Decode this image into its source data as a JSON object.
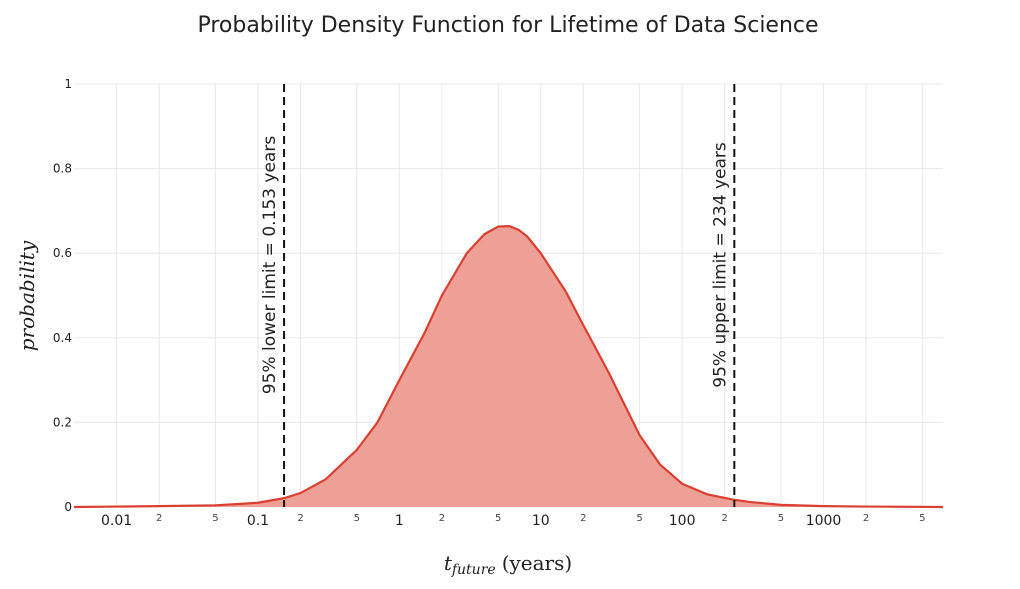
{
  "chart_data": {
    "type": "area",
    "title": "Probability Density Function for Lifetime of Data Science",
    "ylabel": "probability",
    "xlabel_main": "t",
    "xlabel_sub": "future",
    "xlabel_unit": "(years)",
    "x_scale": "log",
    "xlim": [
      0.005,
      7000
    ],
    "ylim": [
      0,
      1
    ],
    "y_ticks": [
      "0",
      "0.2",
      "0.4",
      "0.6",
      "0.8",
      "1"
    ],
    "y_tick_values": [
      0,
      0.2,
      0.4,
      0.6,
      0.8,
      1
    ],
    "x_major_ticks": [
      {
        "value": 0.01,
        "label": "0.01"
      },
      {
        "value": 0.1,
        "label": "0.1"
      },
      {
        "value": 1,
        "label": "1"
      },
      {
        "value": 10,
        "label": "10"
      },
      {
        "value": 100,
        "label": "100"
      },
      {
        "value": 1000,
        "label": "1000"
      }
    ],
    "x_minor_ticks": [
      {
        "value": 0.02,
        "label": "2"
      },
      {
        "value": 0.05,
        "label": "5"
      },
      {
        "value": 0.2,
        "label": "2"
      },
      {
        "value": 0.5,
        "label": "5"
      },
      {
        "value": 2,
        "label": "2"
      },
      {
        "value": 5,
        "label": "5"
      },
      {
        "value": 20,
        "label": "2"
      },
      {
        "value": 50,
        "label": "5"
      },
      {
        "value": 200,
        "label": "2"
      },
      {
        "value": 500,
        "label": "5"
      },
      {
        "value": 2000,
        "label": "2"
      },
      {
        "value": 5000,
        "label": "5"
      }
    ],
    "series": [
      {
        "x": [
          0.005,
          0.01,
          0.02,
          0.05,
          0.08,
          0.1,
          0.153,
          0.2,
          0.3,
          0.5,
          0.7,
          1,
          1.5,
          2,
          3,
          4,
          5,
          6,
          7,
          8,
          10,
          15,
          20,
          30,
          50,
          70,
          100,
          150,
          234,
          300,
          500,
          1000,
          2000,
          7000
        ],
        "y": [
          0.0,
          0.001,
          0.002,
          0.004,
          0.008,
          0.01,
          0.021,
          0.033,
          0.065,
          0.135,
          0.2,
          0.3,
          0.41,
          0.5,
          0.6,
          0.645,
          0.663,
          0.664,
          0.655,
          0.64,
          0.6,
          0.51,
          0.43,
          0.32,
          0.17,
          0.1,
          0.055,
          0.03,
          0.017,
          0.012,
          0.005,
          0.002,
          0.001,
          0.0
        ]
      }
    ],
    "vlines": [
      {
        "x": 0.153,
        "label": "95% lower limit = 0.153 years"
      },
      {
        "x": 234,
        "label": "95% upper limit = 234 years"
      }
    ],
    "grid": true,
    "colors": {
      "line": "#d94032",
      "fill": "#eea097",
      "vline": "#111111",
      "grid": "#e8e8e8"
    }
  }
}
